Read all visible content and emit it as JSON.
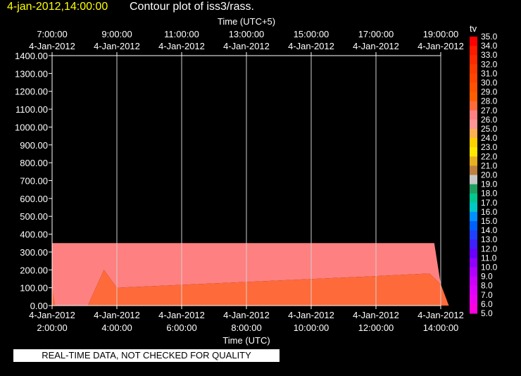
{
  "header": {
    "timestamp": "4-jan-2012,14:00:00",
    "title": "Contour plot of iss3/rass."
  },
  "quality_note": "REAL-TIME DATA, NOT CHECKED FOR QUALITY",
  "chart_data": {
    "type": "area",
    "title": "Contour plot of iss3/rass.",
    "xlabel": "Time (UTC)",
    "x2label": "Time (UTC+5)",
    "ylabel": "",
    "xlim": [
      2,
      14
    ],
    "ylim": [
      0,
      1400
    ],
    "grid": true,
    "yticks": [
      "0.00",
      "100.00",
      "200.00",
      "300.00",
      "400.00",
      "500.00",
      "600.00",
      "700.00",
      "800.00",
      "900.00",
      "1000.00",
      "1100.00",
      "1200.00",
      "1300.00",
      "1400.00"
    ],
    "xticks": [
      {
        "value": 2,
        "date": "4-Jan-2012",
        "time": "2:00:00"
      },
      {
        "value": 4,
        "date": "4-Jan-2012",
        "time": "4:00:00"
      },
      {
        "value": 6,
        "date": "4-Jan-2012",
        "time": "6:00:00"
      },
      {
        "value": 8,
        "date": "4-Jan-2012",
        "time": "8:00:00"
      },
      {
        "value": 10,
        "date": "4-Jan-2012",
        "time": "10:00:00"
      },
      {
        "value": 12,
        "date": "4-Jan-2012",
        "time": "12:00:00"
      },
      {
        "value": 14,
        "date": "4-Jan-2012",
        "time": "14:00:00"
      }
    ],
    "x2ticks": [
      {
        "value": 2,
        "time": "7:00:00",
        "date": "4-Jan-2012"
      },
      {
        "value": 4,
        "time": "9:00:00",
        "date": "4-Jan-2012"
      },
      {
        "value": 6,
        "time": "11:00:00",
        "date": "4-Jan-2012"
      },
      {
        "value": 8,
        "time": "13:00:00",
        "date": "4-Jan-2012"
      },
      {
        "value": 10,
        "time": "15:00:00",
        "date": "4-Jan-2012"
      },
      {
        "value": 12,
        "time": "17:00:00",
        "date": "4-Jan-2012"
      },
      {
        "value": 14,
        "time": "19:00:00",
        "date": "4-Jan-2012"
      }
    ],
    "regions": [
      {
        "level": "26-27",
        "color": "#ff8080",
        "points": [
          [
            2,
            0
          ],
          [
            2,
            350
          ],
          [
            13.8,
            350
          ],
          [
            14.0,
            120
          ],
          [
            13.65,
            180
          ],
          [
            11.4,
            160
          ],
          [
            4.0,
            100
          ],
          [
            3.6,
            200
          ],
          [
            3.1,
            0
          ]
        ]
      },
      {
        "level": "27-28",
        "color": "#ff6a3a",
        "points": [
          [
            3.1,
            0
          ],
          [
            3.6,
            200
          ],
          [
            4.0,
            100
          ],
          [
            11.4,
            160
          ],
          [
            13.65,
            180
          ],
          [
            14.0,
            120
          ],
          [
            14.25,
            0
          ]
        ]
      },
      {
        "level": "27-28",
        "color": "#ff6a3a",
        "points": [
          [
            2.0,
            0
          ],
          [
            2.0,
            110
          ],
          [
            2.1,
            0
          ]
        ]
      }
    ],
    "colorbar": {
      "label": "tv",
      "levels": [
        "35.0",
        "34.0",
        "33.0",
        "32.0",
        "31.0",
        "30.0",
        "29.0",
        "28.0",
        "27.0",
        "26.0",
        "25.0",
        "24.0",
        "23.0",
        "22.0",
        "21.0",
        "20.0",
        "19.0",
        "18.0",
        "17.0",
        "16.0",
        "15.0",
        "14.0",
        "13.0",
        "12.0",
        "11.0",
        "10.0",
        "9.0",
        "8.0",
        "7.0",
        "6.0",
        "5.0"
      ],
      "colors": [
        "#ff0000",
        "#ff1a00",
        "#ff2a00",
        "#ff3a00",
        "#ff4500",
        "#ff5200",
        "#ff5e00",
        "#ff6a3a",
        "#ff8080",
        "#ff9595",
        "#ffb050",
        "#ffd000",
        "#ffe800",
        "#e8b020",
        "#c08040",
        "#c8c8c8",
        "#20a060",
        "#00c890",
        "#00c8c8",
        "#0090ff",
        "#0060ff",
        "#2040ff",
        "#4020ff",
        "#6a00ff",
        "#9000ff",
        "#b000ff",
        "#cc00ff",
        "#e000ff",
        "#f000f0",
        "#ff00e0"
      ]
    }
  }
}
